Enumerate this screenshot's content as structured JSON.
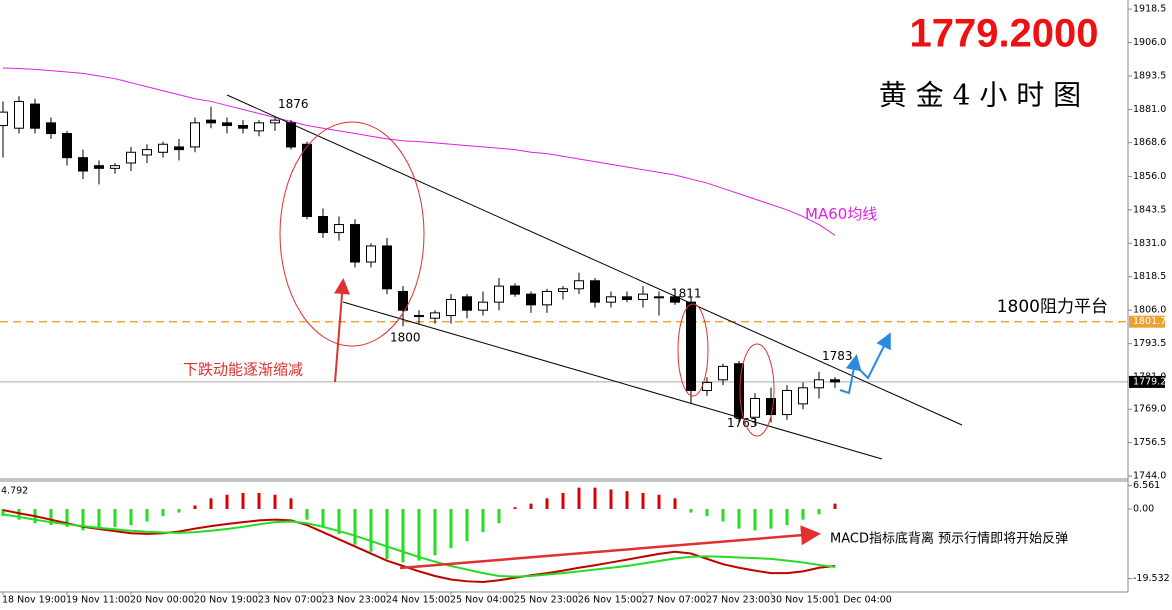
{
  "chart_data": [
    {
      "type": "candlestick",
      "title": "黄 金 4 小 时 图",
      "price_banner": "1779.2000",
      "categories": [
        "18 Nov 19:00",
        null,
        null,
        null,
        "19 Nov 11:00",
        null,
        null,
        null,
        "20 Nov 00:00",
        null,
        null,
        null,
        "20 Nov 19:00",
        null,
        null,
        null,
        "23 Nov 07:00",
        null,
        null,
        null,
        "23 Nov 23:00",
        null,
        null,
        null,
        "24 Nov 15:00",
        null,
        null,
        null,
        "25 Nov 04:00",
        null,
        null,
        null,
        "25 Nov 23:00",
        null,
        null,
        null,
        "26 Nov 15:00",
        null,
        null,
        null,
        "27 Nov 07:00",
        null,
        null,
        null,
        "27 Nov 23:00",
        null,
        null,
        null,
        "30 Nov 15:00",
        null,
        null,
        null,
        "1 Dec 04:00"
      ],
      "open": [
        1875,
        1874,
        1883,
        1876,
        1872,
        1863,
        1860,
        1859,
        1861,
        1864,
        1865,
        1867,
        1867,
        1877,
        1876,
        1875,
        1873,
        1876,
        1876,
        1868,
        1841,
        1835,
        1838,
        1824,
        1830,
        1813,
        1804,
        1803,
        1804,
        1811,
        1806,
        1809,
        1815,
        1812,
        1808,
        1813,
        1814,
        1817,
        1809,
        1811,
        1810,
        1811,
        1811,
        1809,
        1776,
        1780,
        1786,
        1766,
        1773,
        1767,
        1771,
        1777,
        1780
      ],
      "high": [
        1884,
        1886,
        1885,
        1878,
        1873,
        1866,
        1862,
        1861,
        1867,
        1868,
        1869,
        1870,
        1878,
        1882,
        1878,
        1877,
        1877,
        1878,
        1877,
        1869,
        1844,
        1841,
        1840,
        1831,
        1833,
        1815,
        1806,
        1806,
        1812,
        1812,
        1813,
        1818,
        1816,
        1813,
        1814,
        1815,
        1820,
        1818,
        1813,
        1813,
        1815,
        1813,
        1812,
        1811,
        1781,
        1786,
        1787,
        1775,
        1777,
        1778,
        1779,
        1783,
        1781
      ],
      "low": [
        1863,
        1872,
        1872,
        1870,
        1860,
        1855,
        1853,
        1857,
        1858,
        1861,
        1863,
        1862,
        1865,
        1874,
        1872,
        1872,
        1871,
        1873,
        1866,
        1840,
        1833,
        1832,
        1822,
        1822,
        1812,
        1800,
        1801,
        1801,
        1801,
        1803,
        1804,
        1806,
        1811,
        1805,
        1805,
        1810,
        1812,
        1807,
        1807,
        1809,
        1807,
        1804,
        1808,
        1771,
        1774,
        1778,
        1764,
        1763,
        1764,
        1765,
        1769,
        1773,
        1777
      ],
      "close": [
        1880,
        1884,
        1874,
        1872,
        1863,
        1858,
        1859,
        1860,
        1865,
        1866,
        1868,
        1866,
        1876,
        1876,
        1875,
        1874,
        1876,
        1877,
        1867,
        1841,
        1835,
        1838,
        1824,
        1830,
        1814,
        1806,
        1804,
        1805,
        1810,
        1806,
        1809,
        1815,
        1812,
        1808,
        1813,
        1814,
        1817,
        1809,
        1811,
        1810,
        1812,
        1811,
        1809,
        1776,
        1779,
        1785,
        1766,
        1773,
        1767,
        1776,
        1777,
        1780,
        1779.2
      ],
      "up_color": "#ffffff",
      "down_color": "#000000",
      "ylim": [
        1743.3,
        1921.9
      ],
      "yticks": [
        1918.5,
        {
          "value": 1906,
          "label": "1906.0"
        },
        1893.5,
        {
          "value": 1881,
          "label": "1881.0"
        },
        1868.6,
        {
          "value": 1856,
          "label": "1856.0"
        },
        1843.5,
        {
          "value": 1831,
          "label": "1831.0"
        },
        1818.5,
        {
          "value": 1806,
          "label": "1806.0"
        },
        1793.5,
        {
          "value": 1781,
          "label": "1781.0"
        },
        {
          "value": 1769,
          "label": "1769.0"
        },
        1756.5,
        {
          "value": 1744,
          "label": "1744.0"
        }
      ],
      "series": [
        {
          "name": "MA60均线",
          "color": "#e020e0",
          "values": [
            1896.5,
            1896.3,
            1896,
            1895.5,
            1895,
            1894.5,
            1893.5,
            1892.5,
            1891,
            1889.5,
            1888,
            1886.5,
            1885,
            1884,
            1882.5,
            1881,
            1879.5,
            1878,
            1876.5,
            1875,
            1874,
            1873,
            1872,
            1871,
            1870,
            1869.3,
            1869,
            1868.5,
            1868,
            1867.5,
            1867,
            1866.5,
            1866,
            1865,
            1864.5,
            1863.5,
            1862.5,
            1861.5,
            1860.5,
            1859.5,
            1858.5,
            1857.5,
            1856.5,
            1855,
            1853.5,
            1851.5,
            1849.5,
            1847.5,
            1845.5,
            1843.5,
            1841,
            1838,
            1834
          ]
        }
      ],
      "resistance": {
        "value": 1801.7,
        "text": "1800阻力平台",
        "color": "#f0a030"
      },
      "last_price": 1779.2,
      "price_labels": [
        1876,
        1800,
        1811,
        1763,
        1783
      ],
      "annotation": "下跌动能逐渐缩减"
    },
    {
      "type": "macd",
      "indicator_value": 4.792,
      "values": [
        -2,
        -3,
        -4,
        -4.5,
        -5,
        -6,
        -5.5,
        -5,
        -4.5,
        -3.5,
        -2,
        -1,
        1,
        3,
        4,
        4.5,
        4.5,
        4,
        3,
        -3,
        -5,
        -7,
        -10,
        -12,
        -14,
        -15,
        -14.5,
        -13,
        -11,
        -9,
        -6.5,
        -4,
        0.5,
        1.5,
        3,
        4.5,
        6,
        6,
        5.5,
        5,
        4.5,
        4,
        3,
        -1,
        -2,
        -3.5,
        -5.5,
        -6,
        -5.5,
        -4.5,
        -3,
        -1.5,
        1.5
      ],
      "up_color": "#e00000",
      "down_color": "#22dd22",
      "series": [
        {
          "color": "#c00000",
          "values": [
            -0.3,
            -1.2,
            -2,
            -3,
            -4,
            -5,
            -5.6,
            -6.2,
            -6.8,
            -7,
            -6.8,
            -6.3,
            -5.5,
            -4.8,
            -4.2,
            -3.7,
            -3.2,
            -3,
            -3.2,
            -4.5,
            -6.5,
            -8.5,
            -10.5,
            -12.5,
            -14.5,
            -16,
            -17.5,
            -18.8,
            -19.8,
            -20.3,
            -20.5,
            -20,
            -19.3,
            -18.6,
            -18,
            -17.3,
            -16.5,
            -15.8,
            -15,
            -14.2,
            -13.4,
            -12.6,
            -12,
            -12.5,
            -14,
            -15.5,
            -16.5,
            -17.3,
            -18,
            -18,
            -17.5,
            -16.5,
            -16
          ]
        },
        {
          "color": "#22dd22",
          "values": [
            -1.5,
            -2.2,
            -3,
            -3.7,
            -4.3,
            -4.8,
            -5.3,
            -5.7,
            -6.1,
            -6.4,
            -6.6,
            -6.7,
            -6.5,
            -6.1,
            -5.6,
            -5,
            -4.3,
            -3.7,
            -3.5,
            -4,
            -5,
            -6.2,
            -7.5,
            -9,
            -10.5,
            -12,
            -13.5,
            -14.8,
            -16,
            -17,
            -18,
            -18.8,
            -19,
            -18.8,
            -18.4,
            -18,
            -17.5,
            -17,
            -16.5,
            -16,
            -15.3,
            -14.6,
            -13.9,
            -13.4,
            -13.3,
            -13.4,
            -13.6,
            -13.8,
            -14,
            -14.5,
            -15,
            -15.7,
            -16.3
          ]
        }
      ],
      "ylim": [
        -23.3,
        7.86
      ],
      "yticks": [
        6.561,
        {
          "value": 0,
          "label": "0.00"
        },
        -19.532
      ],
      "annotation": "MACD指标底背离 预示行情即将开始反弹"
    }
  ]
}
